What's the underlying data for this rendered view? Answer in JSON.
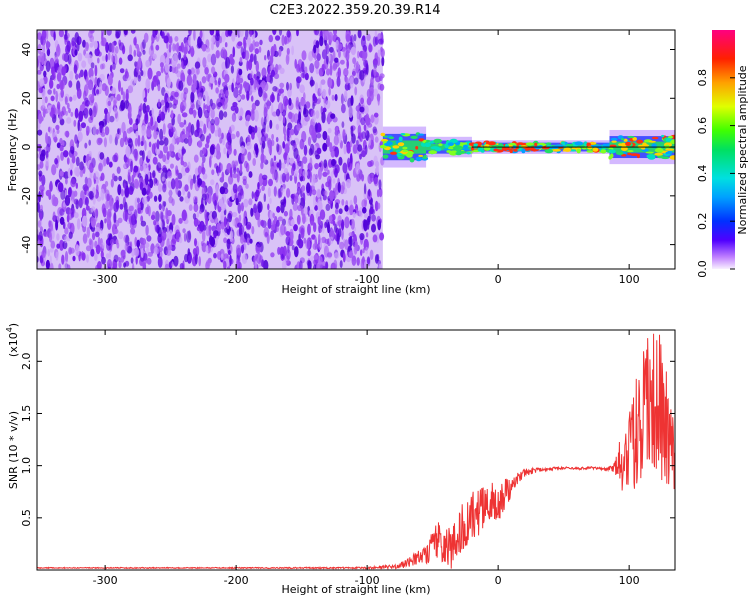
{
  "figure": {
    "title": "C2E3.2022.359.20.39.R14"
  },
  "colors": {
    "axis": "#000000",
    "snr_line": "#ee3333",
    "background": "#ffffff",
    "noise_purple": "#7a1fe0",
    "noise_light": "#d9c2f7",
    "signal_green": "#22dd66",
    "signal_blue": "#2244ff",
    "signal_red": "#ee2222"
  },
  "chart_data": [
    {
      "type": "heatmap",
      "id": "spectrogram",
      "title": "",
      "xlabel": "Height of straight line (km)",
      "ylabel": "Frequency (Hz)",
      "xlim": [
        -352,
        135
      ],
      "ylim": [
        -50,
        48
      ],
      "x_ticks": [
        -300,
        -200,
        -100,
        0,
        100
      ],
      "x_tick_labels": [
        "-300",
        "-200",
        "-100",
        "0",
        "100"
      ],
      "y_ticks": [
        -40,
        -20,
        0,
        20,
        40
      ],
      "y_tick_labels": [
        "-40",
        "-20",
        "0",
        "20",
        "40"
      ],
      "noise_region_x": [
        -352,
        -88
      ],
      "signal_center_frequency": 0,
      "signal_band_segments": [
        {
          "x": [
            -88,
            -55
          ],
          "freq_halfwidth": 6,
          "peak_amplitude": 0.75
        },
        {
          "x": [
            -55,
            -20
          ],
          "freq_halfwidth": 3,
          "peak_amplitude": 0.55
        },
        {
          "x": [
            -20,
            85
          ],
          "freq_halfwidth": 2,
          "peak_amplitude": 0.95
        },
        {
          "x": [
            85,
            135
          ],
          "freq_halfwidth": 5,
          "peak_amplitude": 0.9
        }
      ],
      "colorbar": {
        "label": "Normalized spectral amplitude",
        "range": [
          0,
          1
        ],
        "ticks": [
          0.0,
          0.2,
          0.4,
          0.6,
          0.8
        ],
        "tick_labels": [
          "0.0",
          "0.2",
          "0.4",
          "0.6",
          "0.8"
        ]
      },
      "grid": false
    },
    {
      "type": "line",
      "id": "snr",
      "title": "",
      "xlabel": "Height of straight line (km)",
      "ylabel": "SNR (10 * v/v)",
      "y_multiplier_label": "(x10",
      "y_multiplier_exponent": "4",
      "xlim": [
        -352,
        135
      ],
      "ylim": [
        0,
        2.3
      ],
      "x_ticks": [
        -300,
        -200,
        -100,
        0,
        100
      ],
      "x_tick_labels": [
        "-300",
        "-200",
        "-100",
        "0",
        "100"
      ],
      "y_ticks": [
        0.5,
        1.0,
        1.5,
        2.0
      ],
      "y_tick_labels": [
        "0.5",
        "1.0",
        "1.5",
        "2.0"
      ],
      "series": [
        {
          "x": [
            -352,
            -300,
            -200,
            -100,
            -80,
            -70,
            -60,
            -55,
            -50,
            -45,
            -40,
            -35,
            -30,
            -25,
            -20,
            -15,
            -10,
            -5,
            0,
            5,
            10,
            15,
            20,
            30,
            40,
            50,
            60,
            70,
            80,
            88,
            95,
            100,
            105,
            110,
            115,
            120,
            125,
            130,
            135
          ],
          "y": [
            0.02,
            0.02,
            0.02,
            0.02,
            0.03,
            0.06,
            0.12,
            0.18,
            0.22,
            0.3,
            0.25,
            0.2,
            0.35,
            0.45,
            0.5,
            0.55,
            0.6,
            0.65,
            0.62,
            0.72,
            0.8,
            0.88,
            0.93,
            0.96,
            0.97,
            0.98,
            0.97,
            0.98,
            0.97,
            0.97,
            1.05,
            1.2,
            1.3,
            1.45,
            1.55,
            1.65,
            1.5,
            1.3,
            1.0
          ],
          "noise_amplitude": [
            0.005,
            0.005,
            0.005,
            0.008,
            0.02,
            0.04,
            0.08,
            0.12,
            0.15,
            0.2,
            0.22,
            0.2,
            0.22,
            0.25,
            0.25,
            0.22,
            0.2,
            0.2,
            0.18,
            0.15,
            0.1,
            0.06,
            0.04,
            0.02,
            0.015,
            0.012,
            0.012,
            0.012,
            0.012,
            0.03,
            0.3,
            0.45,
            0.55,
            0.65,
            0.7,
            0.75,
            0.7,
            0.5,
            0.3
          ]
        }
      ],
      "grid": false
    }
  ]
}
